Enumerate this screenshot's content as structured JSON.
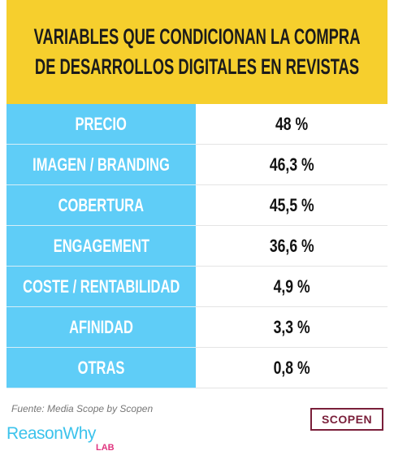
{
  "header": {
    "title_lines": [
      "VARIABLES QUE CONDICIONAN LA COMPRA",
      "DE DESARROLLOS DIGITALES EN REVISTAS"
    ]
  },
  "table": {
    "rows": [
      [
        "PRECIO",
        "48 %"
      ],
      [
        "IMAGEN / BRANDING",
        "46,3 %"
      ],
      [
        "COBERTURA",
        "45,5 %"
      ],
      [
        "ENGAGEMENT",
        "36,6 %"
      ],
      [
        "COSTE / RENTABILIDAD",
        "4,9 %"
      ],
      [
        "AFINIDAD",
        "3,3 %"
      ],
      [
        "OTRAS",
        "0,8 %"
      ]
    ]
  },
  "footer": {
    "source": "Fuente: Media Scope by Scopen",
    "logo_main": "ReasonWhy",
    "logo_sub": "LAB",
    "partner": "SCOPEN"
  }
}
